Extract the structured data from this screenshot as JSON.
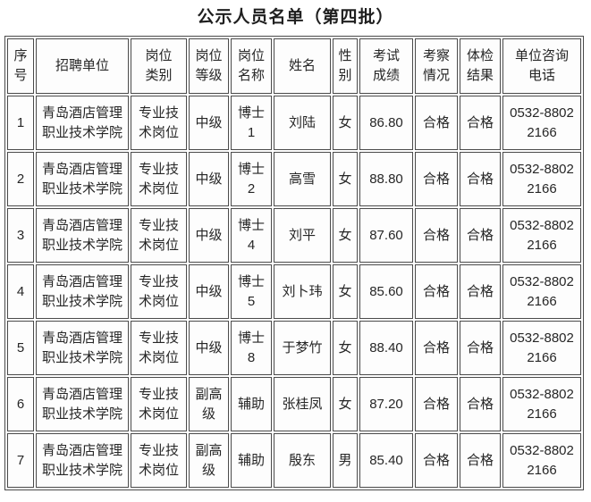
{
  "title": "公示人员名单（第四批）",
  "colors": {
    "border": "#4a4a4a",
    "cell_background": "#fdfdfd",
    "text": "#262626"
  },
  "table": {
    "columns": [
      {
        "key": "no",
        "label": "序号"
      },
      {
        "key": "unit",
        "label": "招聘单位"
      },
      {
        "key": "cat",
        "label": "岗位类别"
      },
      {
        "key": "level",
        "label": "岗位等级"
      },
      {
        "key": "pos",
        "label": "岗位名称"
      },
      {
        "key": "name",
        "label": "姓名"
      },
      {
        "key": "gender",
        "label": "性别"
      },
      {
        "key": "score",
        "label": "考试成绩"
      },
      {
        "key": "inspect",
        "label": "考察情况"
      },
      {
        "key": "phys",
        "label": "体检结果"
      },
      {
        "key": "phone",
        "label": "单位咨询电话"
      }
    ],
    "rows": [
      {
        "no": "1",
        "unit": "青岛酒店管理职业技术学院",
        "cat": "专业技术岗位",
        "level": "中级",
        "pos": "博士1",
        "name": "刘陆",
        "gender": "女",
        "score": "86.80",
        "inspect": "合格",
        "phys": "合格",
        "phone": "0532-88022166"
      },
      {
        "no": "2",
        "unit": "青岛酒店管理职业技术学院",
        "cat": "专业技术岗位",
        "level": "中级",
        "pos": "博士2",
        "name": "高雪",
        "gender": "女",
        "score": "88.80",
        "inspect": "合格",
        "phys": "合格",
        "phone": "0532-88022166"
      },
      {
        "no": "3",
        "unit": "青岛酒店管理职业技术学院",
        "cat": "专业技术岗位",
        "level": "中级",
        "pos": "博士4",
        "name": "刘平",
        "gender": "女",
        "score": "87.60",
        "inspect": "合格",
        "phys": "合格",
        "phone": "0532-88022166"
      },
      {
        "no": "4",
        "unit": "青岛酒店管理职业技术学院",
        "cat": "专业技术岗位",
        "level": "中级",
        "pos": "博士5",
        "name": "刘卜玮",
        "gender": "女",
        "score": "85.60",
        "inspect": "合格",
        "phys": "合格",
        "phone": "0532-88022166"
      },
      {
        "no": "5",
        "unit": "青岛酒店管理职业技术学院",
        "cat": "专业技术岗位",
        "level": "中级",
        "pos": "博士8",
        "name": "于梦竹",
        "gender": "女",
        "score": "88.40",
        "inspect": "合格",
        "phys": "合格",
        "phone": "0532-88022166"
      },
      {
        "no": "6",
        "unit": "青岛酒店管理职业技术学院",
        "cat": "专业技术岗位",
        "level": "副高级",
        "pos": "辅助",
        "name": "张桂凤",
        "gender": "女",
        "score": "87.20",
        "inspect": "合格",
        "phys": "合格",
        "phone": "0532-88022166"
      },
      {
        "no": "7",
        "unit": "青岛酒店管理职业技术学院",
        "cat": "专业技术岗位",
        "level": "副高级",
        "pos": "辅助",
        "name": "殷东",
        "gender": "男",
        "score": "85.40",
        "inspect": "合格",
        "phys": "合格",
        "phone": "0532-88022166"
      }
    ]
  }
}
